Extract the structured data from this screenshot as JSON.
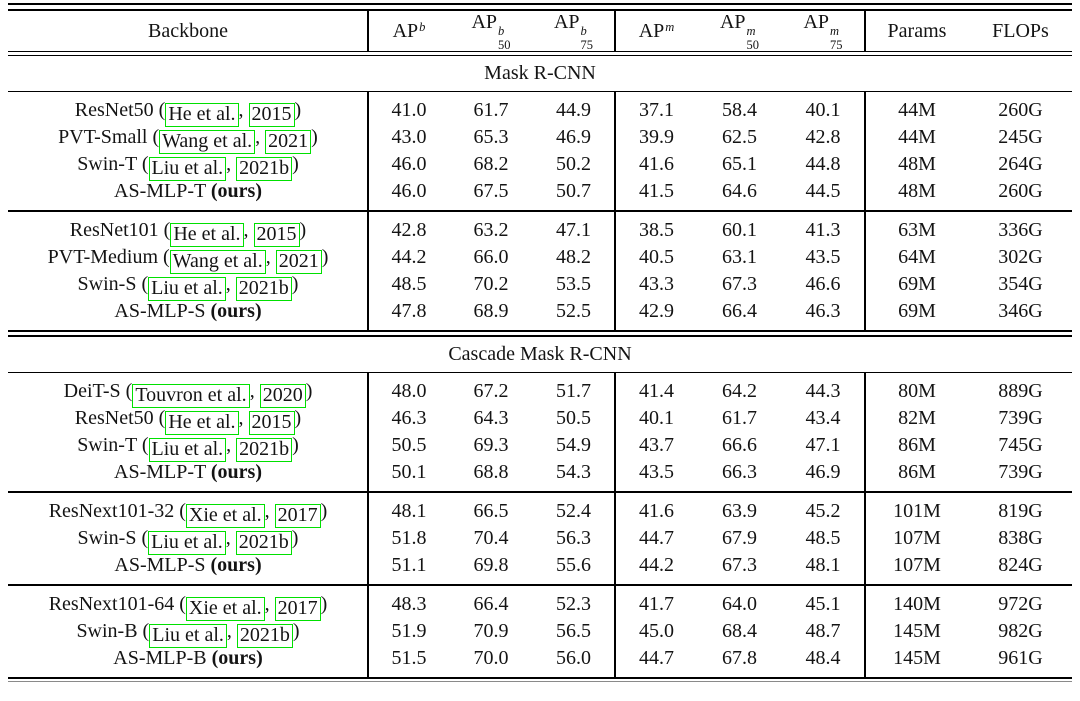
{
  "colors": {
    "citation_box": "#00e000",
    "text": "#141414",
    "rule": "#000000"
  },
  "table": {
    "header": {
      "backbone_label": "Backbone",
      "metric_columns": [
        {
          "base": "AP",
          "sup": "b",
          "sub": ""
        },
        {
          "base": "AP",
          "sup": "b",
          "sub": "50"
        },
        {
          "base": "AP",
          "sup": "b",
          "sub": "75"
        },
        {
          "base": "AP",
          "sup": "m",
          "sub": ""
        },
        {
          "base": "AP",
          "sup": "m",
          "sub": "50"
        },
        {
          "base": "AP",
          "sup": "m",
          "sub": "75"
        },
        {
          "base": "Params",
          "sup": "",
          "sub": ""
        },
        {
          "base": "FLOPs",
          "sup": "",
          "sub": ""
        }
      ]
    },
    "sections": [
      {
        "title": "Mask R-CNN",
        "groups": [
          {
            "rows": [
              {
                "name": "ResNet50",
                "cite": {
                  "author": "He et al.",
                  "year": "2015"
                },
                "values": [
                  "41.0",
                  "61.7",
                  "44.9",
                  "37.1",
                  "58.4",
                  "40.1",
                  "44M",
                  "260G"
                ]
              },
              {
                "name": "PVT-Small",
                "cite": {
                  "author": "Wang et al.",
                  "year": "2021"
                },
                "values": [
                  "43.0",
                  "65.3",
                  "46.9",
                  "39.9",
                  "62.5",
                  "42.8",
                  "44M",
                  "245G"
                ]
              },
              {
                "name": "Swin-T",
                "cite": {
                  "author": "Liu et al.",
                  "year": "2021b"
                },
                "values": [
                  "46.0",
                  "68.2",
                  "50.2",
                  "41.6",
                  "65.1",
                  "44.8",
                  "48M",
                  "264G"
                ]
              },
              {
                "name": "AS-MLP-T",
                "ours": "(ours)",
                "values": [
                  "46.0",
                  "67.5",
                  "50.7",
                  "41.5",
                  "64.6",
                  "44.5",
                  "48M",
                  "260G"
                ]
              }
            ]
          },
          {
            "rows": [
              {
                "name": "ResNet101",
                "cite": {
                  "author": "He et al.",
                  "year": "2015"
                },
                "values": [
                  "42.8",
                  "63.2",
                  "47.1",
                  "38.5",
                  "60.1",
                  "41.3",
                  "63M",
                  "336G"
                ]
              },
              {
                "name": "PVT-Medium",
                "cite": {
                  "author": "Wang et al.",
                  "year": "2021"
                },
                "values": [
                  "44.2",
                  "66.0",
                  "48.2",
                  "40.5",
                  "63.1",
                  "43.5",
                  "64M",
                  "302G"
                ]
              },
              {
                "name": "Swin-S",
                "cite": {
                  "author": "Liu et al.",
                  "year": "2021b"
                },
                "values": [
                  "48.5",
                  "70.2",
                  "53.5",
                  "43.3",
                  "67.3",
                  "46.6",
                  "69M",
                  "354G"
                ]
              },
              {
                "name": "AS-MLP-S",
                "ours": "(ours)",
                "values": [
                  "47.8",
                  "68.9",
                  "52.5",
                  "42.9",
                  "66.4",
                  "46.3",
                  "69M",
                  "346G"
                ]
              }
            ]
          }
        ]
      },
      {
        "title": "Cascade Mask R-CNN",
        "groups": [
          {
            "rows": [
              {
                "name": "DeiT-S",
                "cite": {
                  "author": "Touvron et al.",
                  "year": "2020"
                },
                "values": [
                  "48.0",
                  "67.2",
                  "51.7",
                  "41.4",
                  "64.2",
                  "44.3",
                  "80M",
                  "889G"
                ]
              },
              {
                "name": "ResNet50",
                "cite": {
                  "author": "He et al.",
                  "year": "2015"
                },
                "values": [
                  "46.3",
                  "64.3",
                  "50.5",
                  "40.1",
                  "61.7",
                  "43.4",
                  "82M",
                  "739G"
                ]
              },
              {
                "name": "Swin-T",
                "cite": {
                  "author": "Liu et al.",
                  "year": "2021b"
                },
                "values": [
                  "50.5",
                  "69.3",
                  "54.9",
                  "43.7",
                  "66.6",
                  "47.1",
                  "86M",
                  "745G"
                ]
              },
              {
                "name": "AS-MLP-T",
                "ours": "(ours)",
                "values": [
                  "50.1",
                  "68.8",
                  "54.3",
                  "43.5",
                  "66.3",
                  "46.9",
                  "86M",
                  "739G"
                ]
              }
            ]
          },
          {
            "rows": [
              {
                "name": "ResNext101-32",
                "cite": {
                  "author": "Xie et al.",
                  "year": "2017"
                },
                "values": [
                  "48.1",
                  "66.5",
                  "52.4",
                  "41.6",
                  "63.9",
                  "45.2",
                  "101M",
                  "819G"
                ]
              },
              {
                "name": "Swin-S",
                "cite": {
                  "author": "Liu et al.",
                  "year": "2021b"
                },
                "values": [
                  "51.8",
                  "70.4",
                  "56.3",
                  "44.7",
                  "67.9",
                  "48.5",
                  "107M",
                  "838G"
                ]
              },
              {
                "name": "AS-MLP-S",
                "ours": "(ours)",
                "values": [
                  "51.1",
                  "69.8",
                  "55.6",
                  "44.2",
                  "67.3",
                  "48.1",
                  "107M",
                  "824G"
                ]
              }
            ]
          },
          {
            "rows": [
              {
                "name": "ResNext101-64",
                "cite": {
                  "author": "Xie et al.",
                  "year": "2017"
                },
                "values": [
                  "48.3",
                  "66.4",
                  "52.3",
                  "41.7",
                  "64.0",
                  "45.1",
                  "140M",
                  "972G"
                ]
              },
              {
                "name": "Swin-B",
                "cite": {
                  "author": "Liu et al.",
                  "year": "2021b"
                },
                "values": [
                  "51.9",
                  "70.9",
                  "56.5",
                  "45.0",
                  "68.4",
                  "48.7",
                  "145M",
                  "982G"
                ]
              },
              {
                "name": "AS-MLP-B",
                "ours": "(ours)",
                "values": [
                  "51.5",
                  "70.0",
                  "56.0",
                  "44.7",
                  "67.8",
                  "48.4",
                  "145M",
                  "961G"
                ]
              }
            ]
          }
        ]
      }
    ]
  }
}
